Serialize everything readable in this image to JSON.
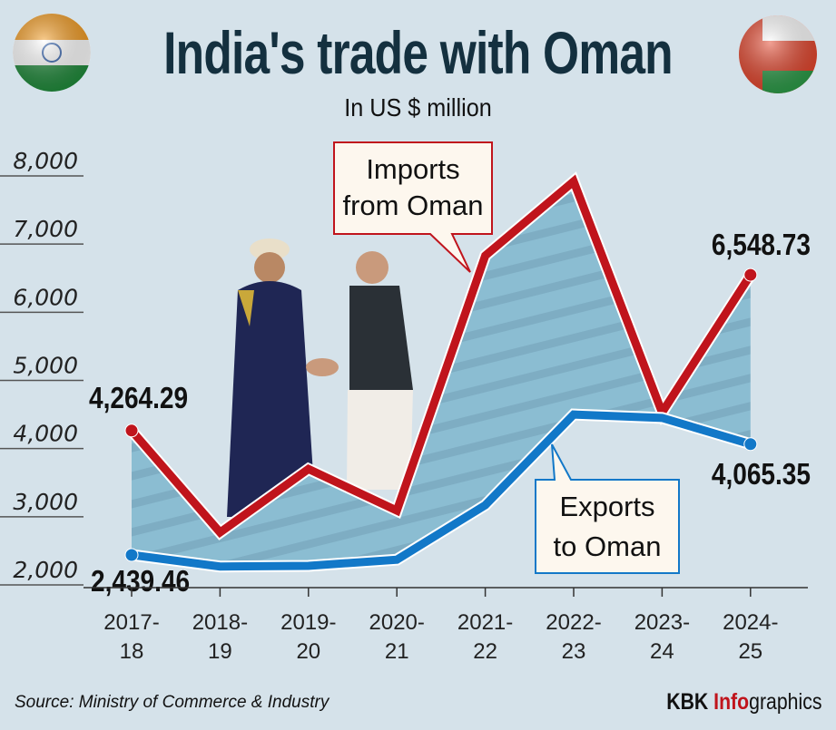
{
  "header": {
    "title": "India's trade with Oman",
    "subtitle": "In US $ million",
    "left_flag": "india-flag-icon",
    "right_flag": "oman-flag-icon"
  },
  "chart_data": {
    "type": "line",
    "title": "India's trade with Oman",
    "subtitle": "In US $ million",
    "categories": [
      "2017-18",
      "2018-19",
      "2019-20",
      "2020-21",
      "2021-22",
      "2022-23",
      "2023-24",
      "2024-25"
    ],
    "category_lines": [
      [
        "2017-",
        "18"
      ],
      [
        "2018-",
        "19"
      ],
      [
        "2019-",
        "20"
      ],
      [
        "2020-",
        "21"
      ],
      [
        "2021-",
        "22"
      ],
      [
        "2022-",
        "23"
      ],
      [
        "2023-",
        "24"
      ],
      [
        "2024-",
        "25"
      ]
    ],
    "yticks": [
      "2,000",
      "3,000",
      "4,000",
      "5,000",
      "6,000",
      "7,000",
      "8,000"
    ],
    "ylim": [
      2000,
      8000
    ],
    "grid": true,
    "series": [
      {
        "name": "Imports from Oman",
        "name_lines": [
          "Imports",
          "from Oman"
        ],
        "color": "#c0141c",
        "values": [
          4264.29,
          2770,
          3700,
          3090,
          6830,
          7920,
          4530,
          6548.73
        ],
        "labels": {
          "first": "4,264.29",
          "last": "6,548.73"
        }
      },
      {
        "name": "Exports to Oman",
        "name_lines": [
          "Exports",
          "to Oman"
        ],
        "color": "#1278c8",
        "values": [
          2439.46,
          2270,
          2280,
          2370,
          3170,
          4500,
          4450,
          4065.35
        ],
        "labels": {
          "first": "2,439.46",
          "last": "4,065.35"
        }
      }
    ],
    "fill_color": "#8bbdd2"
  },
  "footer": {
    "source": "Source: Ministry of Commerce & Industry",
    "brand_kbk": "KBK",
    "brand_info": "Info",
    "brand_graphics": "graphics"
  }
}
